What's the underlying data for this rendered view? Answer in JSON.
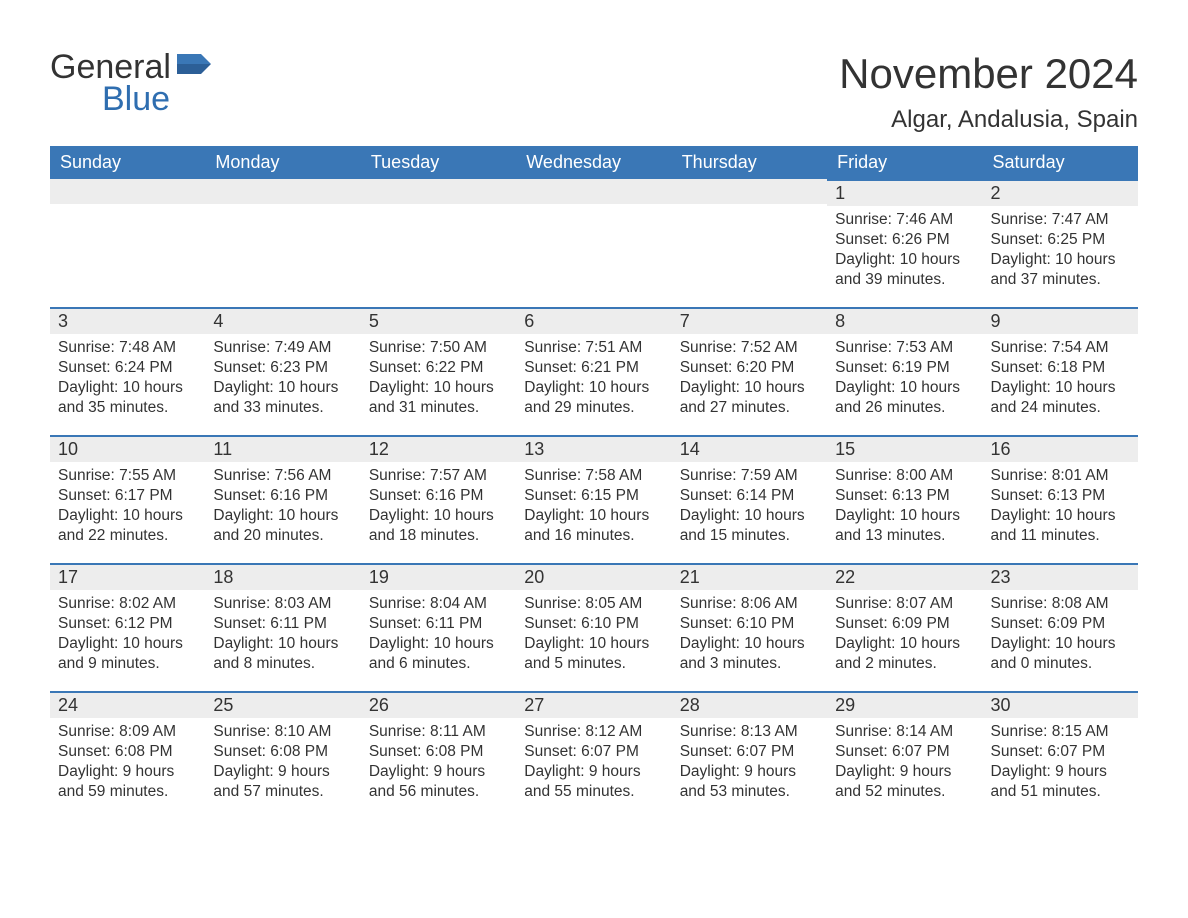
{
  "logo": {
    "word1": "General",
    "word2": "Blue"
  },
  "header": {
    "title": "November 2024",
    "location": "Algar, Andalusia, Spain"
  },
  "colors": {
    "header_bg": "#3a77b6",
    "header_text": "#ffffff",
    "daynum_bg": "#ededed",
    "daynum_border": "#3a77b6",
    "body_text": "#333333",
    "logo_blue": "#2f6eb0",
    "background": "#ffffff"
  },
  "typography": {
    "title_fontsize_pt": 32,
    "location_fontsize_pt": 18,
    "weekday_fontsize_pt": 14,
    "daynum_fontsize_pt": 14,
    "body_fontsize_pt": 12,
    "font_family": "Arial"
  },
  "calendar": {
    "weekdays": [
      "Sunday",
      "Monday",
      "Tuesday",
      "Wednesday",
      "Thursday",
      "Friday",
      "Saturday"
    ],
    "weeks": [
      [
        {
          "empty": true
        },
        {
          "empty": true
        },
        {
          "empty": true
        },
        {
          "empty": true
        },
        {
          "empty": true
        },
        {
          "day": "1",
          "sunrise": "Sunrise: 7:46 AM",
          "sunset": "Sunset: 6:26 PM",
          "daylight": "Daylight: 10 hours and 39 minutes."
        },
        {
          "day": "2",
          "sunrise": "Sunrise: 7:47 AM",
          "sunset": "Sunset: 6:25 PM",
          "daylight": "Daylight: 10 hours and 37 minutes."
        }
      ],
      [
        {
          "day": "3",
          "sunrise": "Sunrise: 7:48 AM",
          "sunset": "Sunset: 6:24 PM",
          "daylight": "Daylight: 10 hours and 35 minutes."
        },
        {
          "day": "4",
          "sunrise": "Sunrise: 7:49 AM",
          "sunset": "Sunset: 6:23 PM",
          "daylight": "Daylight: 10 hours and 33 minutes."
        },
        {
          "day": "5",
          "sunrise": "Sunrise: 7:50 AM",
          "sunset": "Sunset: 6:22 PM",
          "daylight": "Daylight: 10 hours and 31 minutes."
        },
        {
          "day": "6",
          "sunrise": "Sunrise: 7:51 AM",
          "sunset": "Sunset: 6:21 PM",
          "daylight": "Daylight: 10 hours and 29 minutes."
        },
        {
          "day": "7",
          "sunrise": "Sunrise: 7:52 AM",
          "sunset": "Sunset: 6:20 PM",
          "daylight": "Daylight: 10 hours and 27 minutes."
        },
        {
          "day": "8",
          "sunrise": "Sunrise: 7:53 AM",
          "sunset": "Sunset: 6:19 PM",
          "daylight": "Daylight: 10 hours and 26 minutes."
        },
        {
          "day": "9",
          "sunrise": "Sunrise: 7:54 AM",
          "sunset": "Sunset: 6:18 PM",
          "daylight": "Daylight: 10 hours and 24 minutes."
        }
      ],
      [
        {
          "day": "10",
          "sunrise": "Sunrise: 7:55 AM",
          "sunset": "Sunset: 6:17 PM",
          "daylight": "Daylight: 10 hours and 22 minutes."
        },
        {
          "day": "11",
          "sunrise": "Sunrise: 7:56 AM",
          "sunset": "Sunset: 6:16 PM",
          "daylight": "Daylight: 10 hours and 20 minutes."
        },
        {
          "day": "12",
          "sunrise": "Sunrise: 7:57 AM",
          "sunset": "Sunset: 6:16 PM",
          "daylight": "Daylight: 10 hours and 18 minutes."
        },
        {
          "day": "13",
          "sunrise": "Sunrise: 7:58 AM",
          "sunset": "Sunset: 6:15 PM",
          "daylight": "Daylight: 10 hours and 16 minutes."
        },
        {
          "day": "14",
          "sunrise": "Sunrise: 7:59 AM",
          "sunset": "Sunset: 6:14 PM",
          "daylight": "Daylight: 10 hours and 15 minutes."
        },
        {
          "day": "15",
          "sunrise": "Sunrise: 8:00 AM",
          "sunset": "Sunset: 6:13 PM",
          "daylight": "Daylight: 10 hours and 13 minutes."
        },
        {
          "day": "16",
          "sunrise": "Sunrise: 8:01 AM",
          "sunset": "Sunset: 6:13 PM",
          "daylight": "Daylight: 10 hours and 11 minutes."
        }
      ],
      [
        {
          "day": "17",
          "sunrise": "Sunrise: 8:02 AM",
          "sunset": "Sunset: 6:12 PM",
          "daylight": "Daylight: 10 hours and 9 minutes."
        },
        {
          "day": "18",
          "sunrise": "Sunrise: 8:03 AM",
          "sunset": "Sunset: 6:11 PM",
          "daylight": "Daylight: 10 hours and 8 minutes."
        },
        {
          "day": "19",
          "sunrise": "Sunrise: 8:04 AM",
          "sunset": "Sunset: 6:11 PM",
          "daylight": "Daylight: 10 hours and 6 minutes."
        },
        {
          "day": "20",
          "sunrise": "Sunrise: 8:05 AM",
          "sunset": "Sunset: 6:10 PM",
          "daylight": "Daylight: 10 hours and 5 minutes."
        },
        {
          "day": "21",
          "sunrise": "Sunrise: 8:06 AM",
          "sunset": "Sunset: 6:10 PM",
          "daylight": "Daylight: 10 hours and 3 minutes."
        },
        {
          "day": "22",
          "sunrise": "Sunrise: 8:07 AM",
          "sunset": "Sunset: 6:09 PM",
          "daylight": "Daylight: 10 hours and 2 minutes."
        },
        {
          "day": "23",
          "sunrise": "Sunrise: 8:08 AM",
          "sunset": "Sunset: 6:09 PM",
          "daylight": "Daylight: 10 hours and 0 minutes."
        }
      ],
      [
        {
          "day": "24",
          "sunrise": "Sunrise: 8:09 AM",
          "sunset": "Sunset: 6:08 PM",
          "daylight": "Daylight: 9 hours and 59 minutes."
        },
        {
          "day": "25",
          "sunrise": "Sunrise: 8:10 AM",
          "sunset": "Sunset: 6:08 PM",
          "daylight": "Daylight: 9 hours and 57 minutes."
        },
        {
          "day": "26",
          "sunrise": "Sunrise: 8:11 AM",
          "sunset": "Sunset: 6:08 PM",
          "daylight": "Daylight: 9 hours and 56 minutes."
        },
        {
          "day": "27",
          "sunrise": "Sunrise: 8:12 AM",
          "sunset": "Sunset: 6:07 PM",
          "daylight": "Daylight: 9 hours and 55 minutes."
        },
        {
          "day": "28",
          "sunrise": "Sunrise: 8:13 AM",
          "sunset": "Sunset: 6:07 PM",
          "daylight": "Daylight: 9 hours and 53 minutes."
        },
        {
          "day": "29",
          "sunrise": "Sunrise: 8:14 AM",
          "sunset": "Sunset: 6:07 PM",
          "daylight": "Daylight: 9 hours and 52 minutes."
        },
        {
          "day": "30",
          "sunrise": "Sunrise: 8:15 AM",
          "sunset": "Sunset: 6:07 PM",
          "daylight": "Daylight: 9 hours and 51 minutes."
        }
      ]
    ]
  }
}
